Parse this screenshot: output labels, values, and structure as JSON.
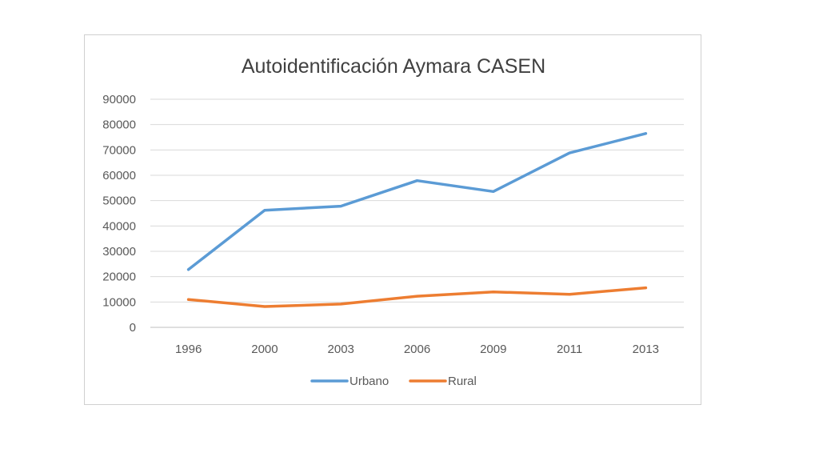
{
  "chart_data": {
    "type": "line",
    "title": "Autoidentificación Aymara CASEN",
    "xlabel": "",
    "ylabel": "",
    "categories": [
      "1996",
      "2000",
      "2003",
      "2006",
      "2009",
      "2011",
      "2013"
    ],
    "ylim": [
      0,
      90000
    ],
    "yticks": [
      0,
      10000,
      20000,
      30000,
      40000,
      50000,
      60000,
      70000,
      80000,
      90000
    ],
    "grid": true,
    "legend": "bottom",
    "series": [
      {
        "name": "Urbano",
        "color": "#5b9bd5",
        "values": [
          22800,
          46200,
          47800,
          57900,
          53600,
          68800,
          76500
        ]
      },
      {
        "name": "Rural",
        "color": "#ed7d31",
        "values": [
          11000,
          8200,
          9200,
          12300,
          14000,
          13000,
          15600
        ]
      }
    ]
  }
}
